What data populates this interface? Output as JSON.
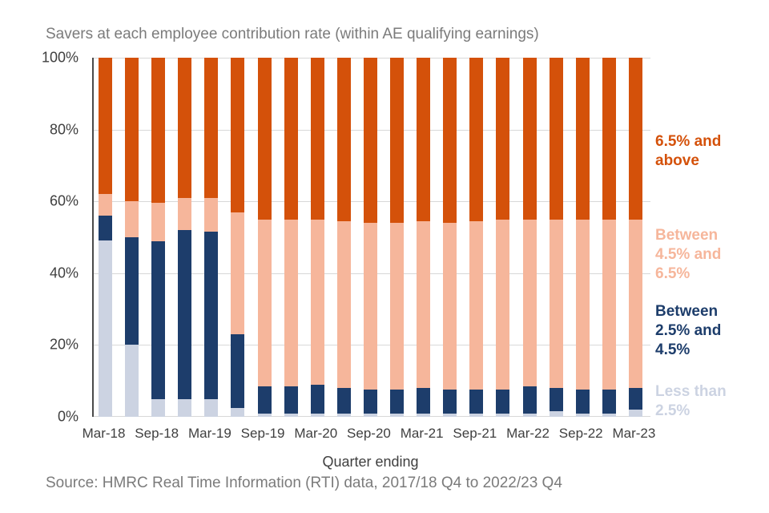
{
  "title": "Savers at each employee contribution rate (within AE qualifying earnings)",
  "xlabel": "Quarter ending",
  "source": "Source: HMRC Real Time Information (RTI) data, 2017/18 Q4 to 2022/23 Q4",
  "y_ticks": [
    "100%",
    "80%",
    "60%",
    "40%",
    "20%",
    "0%"
  ],
  "colors": {
    "less_than_2_5": "#ccd3e2",
    "between_2_5_4_5": "#1d3d6b",
    "between_4_5_6_5": "#f6b69b",
    "above_6_5": "#d4510a",
    "title_text": "#7b7b7b",
    "axis_text": "#3f3f3f",
    "gridline": "#d8d8d8"
  },
  "legend": [
    {
      "label": "6.5% and above",
      "display": "6.5% and\nabove",
      "color_key": "above_6_5"
    },
    {
      "label": "Between 4.5% and 6.5%",
      "display": "Between\n4.5% and\n6.5%",
      "color_key": "between_4_5_6_5"
    },
    {
      "label": "Between 2.5% and 4.5%",
      "display": "Between\n2.5% and\n4.5%",
      "color_key": "between_2_5_4_5"
    },
    {
      "label": "Less than 2.5%",
      "display": "Less than\n2.5%",
      "color_key": "less_than_2_5"
    }
  ],
  "chart_data": {
    "type": "bar",
    "stacked": true,
    "percent": true,
    "title": "Savers at each employee contribution rate (within AE qualifying earnings)",
    "xlabel": "Quarter ending",
    "ylabel": "",
    "ylim": [
      0,
      100
    ],
    "grid": true,
    "legend_position": "right",
    "label_every": 2,
    "categories": [
      "Mar-18",
      "Jun-18",
      "Sep-18",
      "Dec-18",
      "Mar-19",
      "Jun-19",
      "Sep-19",
      "Dec-19",
      "Mar-20",
      "Jun-20",
      "Sep-20",
      "Dec-20",
      "Mar-21",
      "Jun-21",
      "Sep-21",
      "Dec-21",
      "Mar-22",
      "Jun-22",
      "Sep-22",
      "Dec-22",
      "Mar-23"
    ],
    "visible_x_tick_labels": [
      "Mar-18",
      "Sep-18",
      "Mar-19",
      "Sep-19",
      "Mar-20",
      "Sep-20",
      "Mar-21",
      "Sep-21",
      "Mar-22",
      "Sep-22",
      "Mar-23"
    ],
    "series": [
      {
        "name": "Less than 2.5%",
        "color": "#ccd3e2",
        "values": [
          49,
          20,
          5,
          5,
          5,
          2.5,
          1,
          1,
          1,
          1,
          1,
          1,
          1,
          1,
          1,
          1,
          1,
          1.5,
          1,
          1,
          2
        ]
      },
      {
        "name": "Between 2.5% and 4.5%",
        "color": "#1d3d6b",
        "values": [
          7,
          30,
          44,
          47,
          46.5,
          20.5,
          7.5,
          7.5,
          8,
          7,
          6.5,
          6.5,
          7,
          6.5,
          6.5,
          6.5,
          7.5,
          6.5,
          6.5,
          6.5,
          6
        ]
      },
      {
        "name": "Between 4.5% and 6.5%",
        "color": "#f6b69b",
        "values": [
          6,
          10,
          10.5,
          9,
          9.5,
          34,
          46.5,
          46.5,
          46,
          46.5,
          46.5,
          46.5,
          46.5,
          46.5,
          47,
          47.5,
          46.5,
          47,
          47.5,
          47.5,
          47
        ]
      },
      {
        "name": "6.5% and above",
        "color": "#d4510a",
        "values": [
          38,
          40,
          40.5,
          39,
          39,
          43,
          45,
          45,
          45,
          45.5,
          46,
          46,
          45.5,
          46,
          45.5,
          45,
          45,
          45,
          45,
          45,
          45
        ]
      }
    ]
  }
}
